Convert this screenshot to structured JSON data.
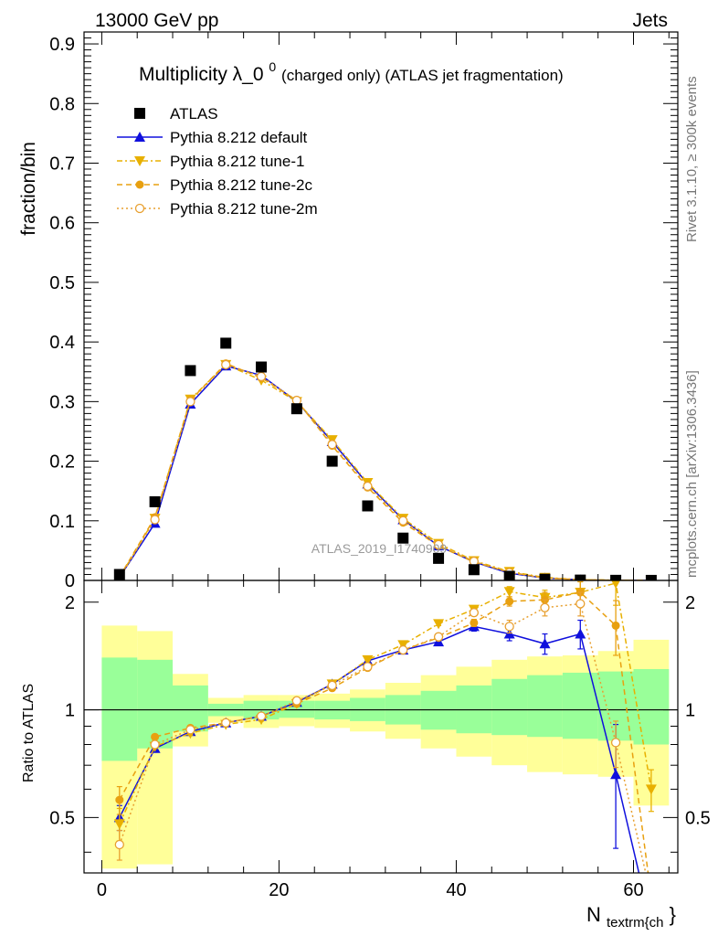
{
  "header": {
    "energy_label": "13000 GeV pp",
    "process_label": "Jets"
  },
  "chart_data": {
    "type": "line",
    "title_main": "Multiplicity λ_0",
    "title_sup": "0",
    "title_suffix": " (charged only) (ATLAS jet fragmentation)",
    "ylabel": "fraction/bin",
    "ratio_ylabel": "Ratio to ATLAS",
    "xlabel_main": "N",
    "xlabel_sub": "textrm{ch",
    "xlabel_tail": "}",
    "watermark": "ATLAS_2019_I1740909",
    "side_label_top": "Rivet 3.1.10, ≥ 300k events",
    "side_label_bottom": "mcplots.cern.ch [arXiv:1306.3436]",
    "xlim": [
      -2,
      65
    ],
    "ylim": [
      0,
      0.92
    ],
    "ratio_ylim": [
      0.35,
      2.3
    ],
    "x_ticks": [
      0,
      20,
      40,
      60
    ],
    "x_tick_labels": [
      "0",
      "20",
      "40",
      "60"
    ],
    "y_ticks": [
      0,
      0.1,
      0.2,
      0.3,
      0.4,
      0.5,
      0.6,
      0.7,
      0.8,
      0.9
    ],
    "y_tick_labels": [
      "0",
      "0.1",
      "0.2",
      "0.3",
      "0.4",
      "0.5",
      "0.6",
      "0.7",
      "0.8",
      "0.9"
    ],
    "ratio_ticks": [
      0.5,
      1,
      2
    ],
    "ratio_tick_labels": [
      "0.5",
      "1",
      "2"
    ],
    "bin_edges": [
      0,
      4,
      8,
      12,
      16,
      20,
      24,
      28,
      32,
      36,
      40,
      44,
      48,
      52,
      56,
      60,
      64
    ],
    "x": [
      2,
      6,
      10,
      14,
      18,
      22,
      26,
      30,
      34,
      38,
      42,
      46,
      50,
      54,
      58,
      62
    ],
    "band_inner": [
      [
        0.72,
        1.4
      ],
      [
        0.78,
        1.38
      ],
      [
        0.87,
        1.17
      ],
      [
        0.96,
        1.04
      ],
      [
        0.94,
        1.06
      ],
      [
        0.95,
        1.06
      ],
      [
        0.94,
        1.06
      ],
      [
        0.93,
        1.08
      ],
      [
        0.91,
        1.1
      ],
      [
        0.88,
        1.13
      ],
      [
        0.86,
        1.17
      ],
      [
        0.85,
        1.22
      ],
      [
        0.84,
        1.25
      ],
      [
        0.83,
        1.27
      ],
      [
        0.82,
        1.28
      ],
      [
        0.8,
        1.3
      ]
    ],
    "band_outer": [
      [
        0.36,
        1.72
      ],
      [
        0.37,
        1.66
      ],
      [
        0.79,
        1.26
      ],
      [
        0.92,
        1.08
      ],
      [
        0.89,
        1.1
      ],
      [
        0.9,
        1.1
      ],
      [
        0.89,
        1.11
      ],
      [
        0.87,
        1.14
      ],
      [
        0.83,
        1.19
      ],
      [
        0.78,
        1.25
      ],
      [
        0.74,
        1.32
      ],
      [
        0.7,
        1.38
      ],
      [
        0.67,
        1.41
      ],
      [
        0.66,
        1.42
      ],
      [
        0.65,
        1.46
      ],
      [
        0.54,
        1.57
      ]
    ],
    "series": [
      {
        "name": "ATLAS",
        "color": "#000000",
        "marker": "square",
        "dash": "",
        "values": [
          0.01,
          0.132,
          0.352,
          0.398,
          0.358,
          0.288,
          0.2,
          0.125,
          0.071,
          0.037,
          0.018,
          0.007,
          0.002,
          0.0006,
          0.0002,
          0.0001
        ],
        "ratio": []
      },
      {
        "name": "Pythia 8.212 default",
        "color": "#1010dd",
        "marker": "triangle-up",
        "dash": "",
        "values": [
          0.005,
          0.096,
          0.296,
          0.36,
          0.344,
          0.3,
          0.233,
          0.162,
          0.102,
          0.058,
          0.031,
          0.012,
          0.004,
          0.001,
          0.0002,
          3e-05
        ],
        "ratio": [
          0.5,
          0.78,
          0.87,
          0.92,
          0.96,
          1.05,
          1.18,
          1.37,
          1.47,
          1.55,
          1.71,
          1.63,
          1.53,
          1.63,
          0.66,
          0.25
        ],
        "ratio_err": [
          0.04,
          0.01,
          0.01,
          0.01,
          0.01,
          0.01,
          0.01,
          0.01,
          0.01,
          0.02,
          0.05,
          0.07,
          0.1,
          0.15,
          0.25,
          0
        ]
      },
      {
        "name": "Pythia 8.212 tune-1",
        "color": "#e8b000",
        "marker": "triangle-down",
        "dash": "6,3,2,3",
        "values": [
          0.005,
          0.104,
          0.304,
          0.362,
          0.336,
          0.3,
          0.236,
          0.164,
          0.104,
          0.062,
          0.033,
          0.015,
          0.005,
          0.0013,
          0.0005,
          8e-05
        ],
        "ratio": [
          0.48,
          0.79,
          0.86,
          0.91,
          0.94,
          1.04,
          1.18,
          1.38,
          1.52,
          1.74,
          1.91,
          2.14,
          2.06,
          2.13,
          2.26,
          0.6
        ],
        "ratio_err": [
          0.05,
          0.01,
          0.01,
          0.01,
          0.01,
          0.01,
          0.01,
          0.01,
          0.01,
          0.02,
          0.04,
          0.07,
          0.1,
          0.15,
          0.3,
          0.08
        ]
      },
      {
        "name": "Pythia 8.212 tune-2c",
        "color": "#e8a010",
        "marker": "circle",
        "dash": "6,4",
        "values": [
          0.006,
          0.106,
          0.302,
          0.364,
          0.34,
          0.302,
          0.226,
          0.156,
          0.097,
          0.058,
          0.031,
          0.014,
          0.004,
          0.0012,
          0.0003,
          4e-05
        ],
        "ratio": [
          0.56,
          0.84,
          0.89,
          0.92,
          0.96,
          1.04,
          1.15,
          1.31,
          1.47,
          1.59,
          1.75,
          2.01,
          2.03,
          2.13,
          1.72,
          0.3
        ],
        "ratio_err": [
          0.05,
          0.01,
          0.01,
          0.01,
          0.01,
          0.01,
          0.01,
          0.01,
          0.01,
          0.02,
          0.04,
          0.06,
          0.1,
          0.15,
          0.3,
          0
        ]
      },
      {
        "name": "Pythia 8.212 tune-2m",
        "color": "#e8a030",
        "marker": "circle-open",
        "dash": "2,3",
        "values": [
          0.004,
          0.102,
          0.3,
          0.362,
          0.342,
          0.302,
          0.228,
          0.158,
          0.1,
          0.06,
          0.032,
          0.013,
          0.004,
          0.0012,
          0.0002,
          4e-05
        ],
        "ratio": [
          0.42,
          0.8,
          0.88,
          0.92,
          0.96,
          1.06,
          1.17,
          1.32,
          1.47,
          1.6,
          1.87,
          1.71,
          1.93,
          1.98,
          0.81,
          0.3
        ],
        "ratio_err": [
          0.04,
          0.01,
          0.01,
          0.01,
          0.01,
          0.01,
          0.01,
          0.01,
          0.01,
          0.02,
          0.04,
          0.07,
          0.1,
          0.15,
          0.12,
          0
        ]
      }
    ]
  }
}
